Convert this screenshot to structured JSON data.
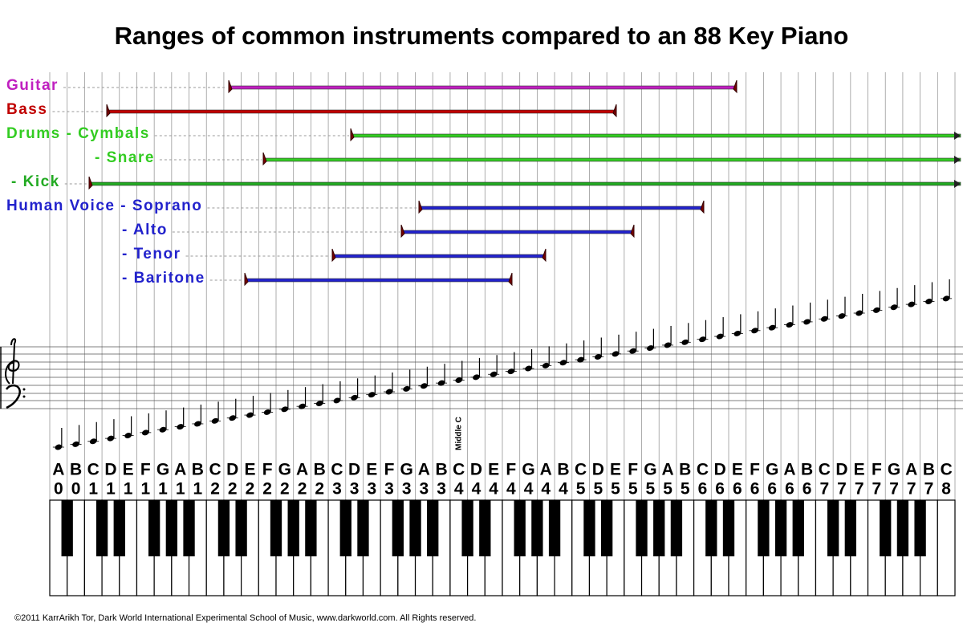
{
  "title": "Ranges of common instruments compared to an 88 Key Piano",
  "instruments": [
    "Guitar",
    "Bass",
    "Drums  - Cymbals",
    "- Snare",
    "- Kick",
    "Human Voice  - Soprano",
    "- Alto",
    "- Tenor",
    "- Baritone"
  ],
  "notes": [
    [
      "A",
      "0"
    ],
    [
      "B",
      "0"
    ],
    [
      "C",
      "1"
    ],
    [
      "D",
      "1"
    ],
    [
      "E",
      "1"
    ],
    [
      "F",
      "1"
    ],
    [
      "G",
      "1"
    ],
    [
      "A",
      "1"
    ],
    [
      "B",
      "1"
    ],
    [
      "C",
      "2"
    ],
    [
      "D",
      "2"
    ],
    [
      "E",
      "2"
    ],
    [
      "F",
      "2"
    ],
    [
      "G",
      "2"
    ],
    [
      "A",
      "2"
    ],
    [
      "B",
      "2"
    ],
    [
      "C",
      "3"
    ],
    [
      "D",
      "3"
    ],
    [
      "E",
      "3"
    ],
    [
      "F",
      "3"
    ],
    [
      "G",
      "3"
    ],
    [
      "A",
      "3"
    ],
    [
      "B",
      "3"
    ],
    [
      "C",
      "4"
    ],
    [
      "D",
      "4"
    ],
    [
      "E",
      "4"
    ],
    [
      "F",
      "4"
    ],
    [
      "G",
      "4"
    ],
    [
      "A",
      "4"
    ],
    [
      "B",
      "4"
    ],
    [
      "C",
      "5"
    ],
    [
      "D",
      "5"
    ],
    [
      "E",
      "5"
    ],
    [
      "F",
      "5"
    ],
    [
      "G",
      "5"
    ],
    [
      "A",
      "5"
    ],
    [
      "B",
      "5"
    ],
    [
      "C",
      "6"
    ],
    [
      "D",
      "6"
    ],
    [
      "E",
      "6"
    ],
    [
      "F",
      "6"
    ],
    [
      "G",
      "6"
    ],
    [
      "A",
      "6"
    ],
    [
      "B",
      "6"
    ],
    [
      "C",
      "7"
    ],
    [
      "D",
      "7"
    ],
    [
      "E",
      "7"
    ],
    [
      "F",
      "7"
    ],
    [
      "G",
      "7"
    ],
    [
      "A",
      "7"
    ],
    [
      "B",
      "7"
    ],
    [
      "C",
      "8"
    ]
  ],
  "middle_c": "Middle C",
  "footer": "©2011 KarrArikh Tor, Dark World International Experimental School of Music, www.darkworld.com. All Rights reserved."
}
